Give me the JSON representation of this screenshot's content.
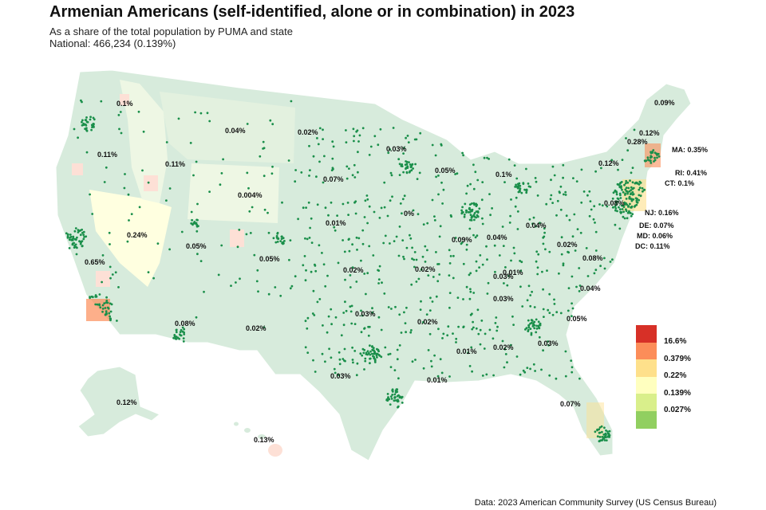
{
  "header": {
    "title": "Armenian Americans (self-identified, alone or in combination) in 2023",
    "subtitle": "As a share of the total population by PUMA and state",
    "national": "National: 466,234 (0.139%)"
  },
  "source": "Data: 2023 American Community Survey (US Census Bureau)",
  "colors": {
    "land": "#d7ebdc",
    "land_alt": "#eff7e1",
    "border": "#ffffff",
    "dot": "#1a8f4a",
    "water": "#ffffff"
  },
  "legend": {
    "items": [
      {
        "label": "16.6%",
        "color": "#d73027"
      },
      {
        "label": "0.379%",
        "color": "#fc8d59"
      },
      {
        "label": "0.22%",
        "color": "#fee08b"
      },
      {
        "label": "0.139%",
        "color": "#ffffbf"
      },
      {
        "label": "0.027%",
        "color": "#d9ef8b"
      },
      {
        "label": "",
        "color": "#91cf60"
      }
    ]
  },
  "state_labels": [
    {
      "text": "0.1%"
    },
    {
      "text": "0.11%"
    },
    {
      "text": "0.11%"
    },
    {
      "text": "0.04%"
    },
    {
      "text": "0.02%"
    },
    {
      "text": "0.03%"
    },
    {
      "text": "0.05%"
    },
    {
      "text": "0.1%"
    },
    {
      "text": "0.07%"
    },
    {
      "text": "0.004%"
    },
    {
      "text": "0.24%"
    },
    {
      "text": "0.05%"
    },
    {
      "text": "0.65%"
    },
    {
      "text": "0.05%"
    },
    {
      "text": "0.01%"
    },
    {
      "text": "0%"
    },
    {
      "text": "0.09%"
    },
    {
      "text": "0.04%"
    },
    {
      "text": "0.04%"
    },
    {
      "text": "0.02%"
    },
    {
      "text": "0.02%"
    },
    {
      "text": "0.02%"
    },
    {
      "text": "0.03%"
    },
    {
      "text": "0.01%"
    },
    {
      "text": "0.08%"
    },
    {
      "text": "0.02%"
    },
    {
      "text": "0.03%"
    },
    {
      "text": "0.02%"
    },
    {
      "text": "0.03%"
    },
    {
      "text": "0.01%"
    },
    {
      "text": "0.02%"
    },
    {
      "text": "0.03%"
    },
    {
      "text": "0.01%"
    },
    {
      "text": "0.03%"
    },
    {
      "text": "0.05%"
    },
    {
      "text": "0.04%"
    },
    {
      "text": "0.08%"
    },
    {
      "text": "0.07%"
    },
    {
      "text": "0.12%"
    },
    {
      "text": "0.13%"
    },
    {
      "text": "0.09%"
    },
    {
      "text": "0.12%"
    },
    {
      "text": "0.28%"
    },
    {
      "text": "0.12%"
    },
    {
      "text": "0.08%"
    },
    {
      "text": "MA: 0.35%"
    },
    {
      "text": "RI: 0.41%"
    },
    {
      "text": "CT: 0.1%"
    },
    {
      "text": "NJ: 0.16%"
    },
    {
      "text": "DE: 0.07%"
    },
    {
      "text": "MD: 0.06%"
    },
    {
      "text": "DC: 0.11%"
    }
  ]
}
